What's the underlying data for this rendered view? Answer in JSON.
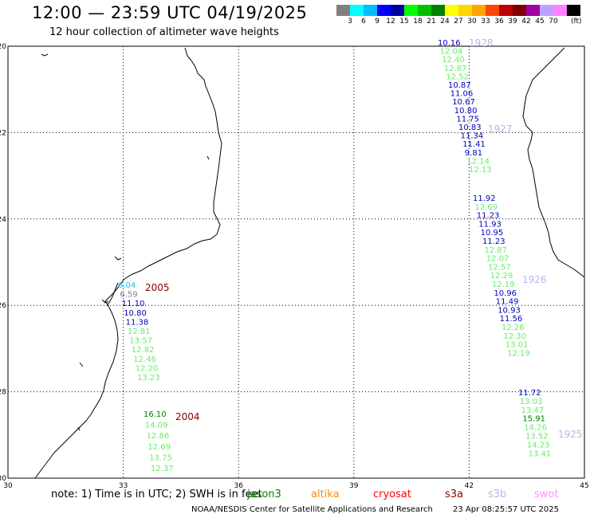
{
  "header": {
    "title": "12:00 — 23:59 UTC 04/19/2025",
    "subtitle": "12 hour collection of altimeter wave heights"
  },
  "color_scale": {
    "unit": "(ft)",
    "swatches": [
      {
        "color": "#808080",
        "label": ""
      },
      {
        "color": "#00ffff",
        "label": "3"
      },
      {
        "color": "#00bfff",
        "label": "6"
      },
      {
        "color": "#0000ff",
        "label": "9"
      },
      {
        "color": "#0000a0",
        "label": "12"
      },
      {
        "color": "#00ff00",
        "label": "15"
      },
      {
        "color": "#00c000",
        "label": "18"
      },
      {
        "color": "#008000",
        "label": "21"
      },
      {
        "color": "#ffff00",
        "label": "24"
      },
      {
        "color": "#ffd700",
        "label": "27"
      },
      {
        "color": "#ffa500",
        "label": "30"
      },
      {
        "color": "#ff4500",
        "label": "33"
      },
      {
        "color": "#c00000",
        "label": "36"
      },
      {
        "color": "#800000",
        "label": "39"
      },
      {
        "color": "#a000a0",
        "label": "42"
      },
      {
        "color": "#c0a0ff",
        "label": "45"
      },
      {
        "color": "#ff80ff",
        "label": "70"
      },
      {
        "color": "#000000",
        "label": ""
      }
    ]
  },
  "axes": {
    "lon_labels": [
      "30",
      "33",
      "36",
      "39",
      "42",
      "45"
    ],
    "lat_labels": [
      "-20",
      "-22",
      "-24",
      "-26",
      "-28",
      "-30"
    ]
  },
  "tracks": [
    {
      "time": "2005",
      "time_color": "#8b0000",
      "points": [
        {
          "v": "6.04",
          "c": "#00c8ff"
        },
        {
          "v": "6.59",
          "c": "#808080"
        },
        {
          "v": "11.10",
          "c": "#0000c0"
        },
        {
          "v": "10.80",
          "c": "#0000c0"
        },
        {
          "v": "11.38",
          "c": "#0000c0"
        },
        {
          "v": "12.81",
          "c": "#66ee66"
        },
        {
          "v": "13.57",
          "c": "#66ee66"
        },
        {
          "v": "12.82",
          "c": "#66ee66"
        },
        {
          "v": "12.46",
          "c": "#66ee66"
        },
        {
          "v": "12.20",
          "c": "#66ee66"
        },
        {
          "v": "13.23",
          "c": "#66ee66"
        }
      ]
    },
    {
      "time": "2004",
      "time_color": "#8b0000",
      "points": [
        {
          "v": "16.10",
          "c": "#008000"
        },
        {
          "v": "14.09",
          "c": "#66ee66"
        },
        {
          "v": "12.86",
          "c": "#66ee66"
        },
        {
          "v": "12.69",
          "c": "#66ee66"
        },
        {
          "v": "13.75",
          "c": "#66ee66"
        },
        {
          "v": "12.37",
          "c": "#66ee66"
        }
      ]
    },
    {
      "time": "1928",
      "time_color": "#c0b0ee",
      "points": [
        {
          "v": "10.16",
          "c": "#0000c0"
        },
        {
          "v": "12.04",
          "c": "#66ee66"
        },
        {
          "v": "12.40",
          "c": "#66ee66"
        },
        {
          "v": "12.87",
          "c": "#66ee66"
        },
        {
          "v": "12.52",
          "c": "#66ee66"
        },
        {
          "v": "10.87",
          "c": "#0000c0"
        },
        {
          "v": "11.06",
          "c": "#0000c0"
        },
        {
          "v": "10.67",
          "c": "#0000c0"
        },
        {
          "v": "10.80",
          "c": "#0000c0"
        },
        {
          "v": "11.75",
          "c": "#0000c0"
        },
        {
          "v": "10.83",
          "c": "#0000c0"
        },
        {
          "v": "11.34",
          "c": "#0000c0"
        },
        {
          "v": "11.41",
          "c": "#0000c0"
        },
        {
          "v": "9.81",
          "c": "#0000c0"
        },
        {
          "v": "12.14",
          "c": "#66ee66"
        },
        {
          "v": "12.13",
          "c": "#66ee66"
        }
      ]
    },
    {
      "time": "1927",
      "time_color": "#c0b0ee",
      "points": []
    },
    {
      "time": "1926",
      "time_color": "#c0b0ee",
      "points": [
        {
          "v": "11.92",
          "c": "#0000c0"
        },
        {
          "v": "12.69",
          "c": "#66ee66"
        },
        {
          "v": "11.23",
          "c": "#0000c0"
        },
        {
          "v": "11.93",
          "c": "#0000c0"
        },
        {
          "v": "10.95",
          "c": "#0000c0"
        },
        {
          "v": "11.23",
          "c": "#0000c0"
        },
        {
          "v": "12.87",
          "c": "#66ee66"
        },
        {
          "v": "12.07",
          "c": "#66ee66"
        },
        {
          "v": "12.57",
          "c": "#66ee66"
        },
        {
          "v": "12.29",
          "c": "#66ee66"
        },
        {
          "v": "12.19",
          "c": "#66ee66"
        },
        {
          "v": "10.96",
          "c": "#0000c0"
        },
        {
          "v": "11.49",
          "c": "#0000c0"
        },
        {
          "v": "10.93",
          "c": "#0000c0"
        },
        {
          "v": "11.56",
          "c": "#0000c0"
        },
        {
          "v": "12.26",
          "c": "#66ee66"
        },
        {
          "v": "12.30",
          "c": "#66ee66"
        },
        {
          "v": "13.01",
          "c": "#66ee66"
        },
        {
          "v": "12.19",
          "c": "#66ee66"
        }
      ]
    },
    {
      "time": "1925",
      "time_color": "#c0b0ee",
      "points": [
        {
          "v": "11.72",
          "c": "#0000c0"
        },
        {
          "v": "13.03",
          "c": "#66ee66"
        },
        {
          "v": "13.47",
          "c": "#66ee66"
        },
        {
          "v": "15.91",
          "c": "#008000"
        },
        {
          "v": "14.26",
          "c": "#66ee66"
        },
        {
          "v": "13.52",
          "c": "#66ee66"
        },
        {
          "v": "14.23",
          "c": "#66ee66"
        },
        {
          "v": "13.41",
          "c": "#66ee66"
        }
      ]
    }
  ],
  "note": {
    "text": "note: 1) Time is in UTC; 2) SWH is in feet",
    "satellites": [
      {
        "name": "jason3",
        "color": "#008000"
      },
      {
        "name": "altika",
        "color": "#ff8c00"
      },
      {
        "name": "cryosat",
        "color": "#ff0000"
      },
      {
        "name": "s3a",
        "color": "#8b0000"
      },
      {
        "name": "s3b",
        "color": "#c0b0ee"
      },
      {
        "name": "swot",
        "color": "#ff90ff"
      }
    ]
  },
  "footer": {
    "credit": "NOAA/NESDIS Center for Satellite Applications and Research",
    "timestamp": "23 Apr 08:25:57 UTC 2025"
  }
}
